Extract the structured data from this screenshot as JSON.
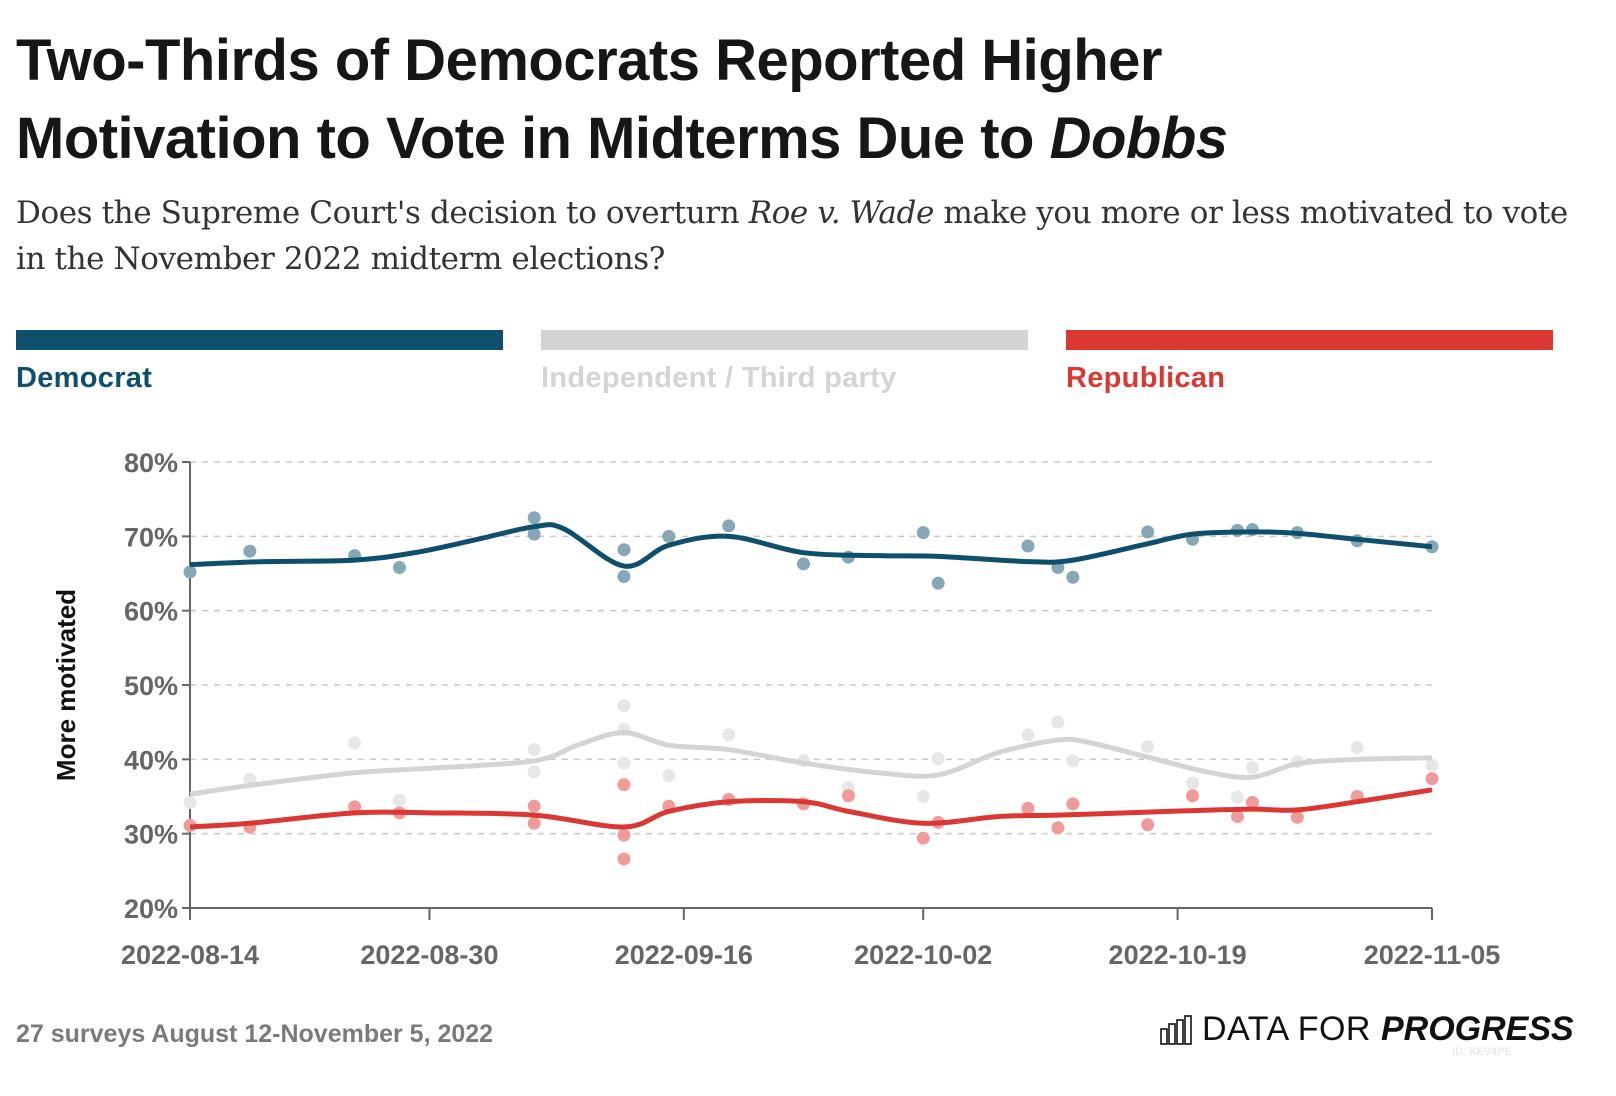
{
  "header": {
    "title_line1": "Two-Thirds of Democrats Reported Higher",
    "title_line2_prefix": "Motivation to Vote in Midterms Due to ",
    "title_line2_italic": "Dobbs",
    "subtitle_prefix": "Does the Supreme Court's decision to overturn ",
    "subtitle_italic": "Roe v. Wade",
    "subtitle_suffix": " make you more or less motivated to vote in the November 2022 midterm elections?"
  },
  "legend": [
    {
      "label": "Democrat",
      "color": "#0e4f6c"
    },
    {
      "label": "Independent / Third party",
      "color": "#d3d4d6"
    },
    {
      "label": "Republican",
      "color": "#db3834"
    }
  ],
  "footer": {
    "note": "27 surveys August 12-November 5, 2022",
    "brand_light": "DATA FOR",
    "brand_bold": "PROGRESS",
    "chart_id": "ID: KEV4PE"
  },
  "chart_data": {
    "type": "scatter",
    "title": "Two-Thirds of Democrats Reported Higher Motivation to Vote in Midterms Due to Dobbs",
    "xlabel": "",
    "ylabel": "More motivated",
    "x_start": "2022-08-14",
    "x_end": "2022-11-05",
    "x_ticks": [
      "2022-08-14",
      "2022-08-30",
      "2022-09-16",
      "2022-10-02",
      "2022-10-19",
      "2022-11-05"
    ],
    "y_ticks": [
      "20%",
      "30%",
      "40%",
      "50%",
      "60%",
      "70%",
      "80%"
    ],
    "ylim": [
      20,
      80
    ],
    "grid": true,
    "legend_position": "top",
    "series": [
      {
        "name": "Democrat",
        "color": "#0e4f6c",
        "point_color": "#86a7b6",
        "points": [
          [
            0,
            65.2
          ],
          [
            4,
            68.0
          ],
          [
            11,
            67.4
          ],
          [
            14,
            65.8
          ],
          [
            23,
            72.5
          ],
          [
            23,
            70.3
          ],
          [
            29,
            68.2
          ],
          [
            29,
            64.6
          ],
          [
            32,
            70.0
          ],
          [
            36,
            71.4
          ],
          [
            41,
            66.3
          ],
          [
            44,
            67.2
          ],
          [
            49,
            70.5
          ],
          [
            50,
            63.7
          ],
          [
            56,
            68.7
          ],
          [
            58,
            65.8
          ],
          [
            59,
            64.5
          ],
          [
            64,
            70.6
          ],
          [
            67,
            69.6
          ],
          [
            70,
            70.8
          ],
          [
            71,
            70.9
          ],
          [
            74,
            70.5
          ],
          [
            78,
            69.4
          ],
          [
            83,
            68.6
          ]
        ],
        "trend": [
          [
            0,
            66.2
          ],
          [
            5,
            66.6
          ],
          [
            11,
            66.8
          ],
          [
            15,
            67.8
          ],
          [
            19,
            69.5
          ],
          [
            23,
            71.3
          ],
          [
            25,
            71.0
          ],
          [
            29,
            66.0
          ],
          [
            32,
            68.8
          ],
          [
            36,
            70.0
          ],
          [
            41,
            67.8
          ],
          [
            46,
            67.4
          ],
          [
            50,
            67.3
          ],
          [
            56,
            66.6
          ],
          [
            59,
            66.8
          ],
          [
            64,
            69.0
          ],
          [
            67,
            70.3
          ],
          [
            71,
            70.6
          ],
          [
            74,
            70.4
          ],
          [
            78,
            69.6
          ],
          [
            83,
            68.6
          ]
        ]
      },
      {
        "name": "Independent / Third party",
        "color": "#d3d4d6",
        "point_color": "#e6e7e9",
        "points": [
          [
            0,
            34.2
          ],
          [
            4,
            37.3
          ],
          [
            11,
            42.2
          ],
          [
            14,
            34.5
          ],
          [
            23,
            41.3
          ],
          [
            23,
            38.3
          ],
          [
            29,
            47.2
          ],
          [
            29,
            44.0
          ],
          [
            29,
            39.5
          ],
          [
            32,
            37.8
          ],
          [
            36,
            43.3
          ],
          [
            41,
            39.8
          ],
          [
            44,
            36.2
          ],
          [
            49,
            35.0
          ],
          [
            50,
            40.1
          ],
          [
            56,
            43.3
          ],
          [
            58,
            45.0
          ],
          [
            59,
            39.8
          ],
          [
            64,
            41.7
          ],
          [
            67,
            36.8
          ],
          [
            70,
            34.9
          ],
          [
            71,
            38.9
          ],
          [
            74,
            39.7
          ],
          [
            78,
            41.6
          ],
          [
            83,
            39.2
          ]
        ],
        "trend": [
          [
            0,
            35.3
          ],
          [
            4,
            36.5
          ],
          [
            11,
            38.2
          ],
          [
            16,
            38.8
          ],
          [
            23,
            39.8
          ],
          [
            26,
            42.0
          ],
          [
            29,
            43.6
          ],
          [
            32,
            41.9
          ],
          [
            36,
            41.3
          ],
          [
            41,
            39.5
          ],
          [
            46,
            38.2
          ],
          [
            50,
            37.9
          ],
          [
            54,
            40.9
          ],
          [
            58,
            42.6
          ],
          [
            60,
            42.3
          ],
          [
            64,
            40.3
          ],
          [
            68,
            38.3
          ],
          [
            71,
            37.6
          ],
          [
            74,
            39.4
          ],
          [
            78,
            40.0
          ],
          [
            83,
            40.2
          ]
        ]
      },
      {
        "name": "Republican",
        "color": "#db3834",
        "point_color": "#ee9b99",
        "points": [
          [
            0,
            31.1
          ],
          [
            4,
            30.9
          ],
          [
            11,
            33.6
          ],
          [
            14,
            32.8
          ],
          [
            23,
            33.7
          ],
          [
            23,
            31.4
          ],
          [
            29,
            36.6
          ],
          [
            29,
            29.8
          ],
          [
            29,
            26.6
          ],
          [
            32,
            33.7
          ],
          [
            36,
            34.6
          ],
          [
            41,
            34.0
          ],
          [
            44,
            35.1
          ],
          [
            49,
            29.4
          ],
          [
            50,
            31.5
          ],
          [
            56,
            33.4
          ],
          [
            58,
            30.8
          ],
          [
            59,
            34.0
          ],
          [
            64,
            31.2
          ],
          [
            67,
            35.1
          ],
          [
            70,
            32.3
          ],
          [
            71,
            34.2
          ],
          [
            74,
            32.2
          ],
          [
            78,
            35.0
          ],
          [
            83,
            37.4
          ]
        ],
        "trend": [
          [
            0,
            30.9
          ],
          [
            4,
            31.4
          ],
          [
            11,
            32.8
          ],
          [
            16,
            32.8
          ],
          [
            23,
            32.5
          ],
          [
            29,
            30.9
          ],
          [
            32,
            33.0
          ],
          [
            36,
            34.3
          ],
          [
            41,
            34.3
          ],
          [
            44,
            33.0
          ],
          [
            49,
            31.4
          ],
          [
            54,
            32.3
          ],
          [
            58,
            32.5
          ],
          [
            64,
            32.9
          ],
          [
            67,
            33.1
          ],
          [
            71,
            33.3
          ],
          [
            74,
            33.2
          ],
          [
            78,
            34.3
          ],
          [
            83,
            35.9
          ]
        ]
      }
    ]
  }
}
